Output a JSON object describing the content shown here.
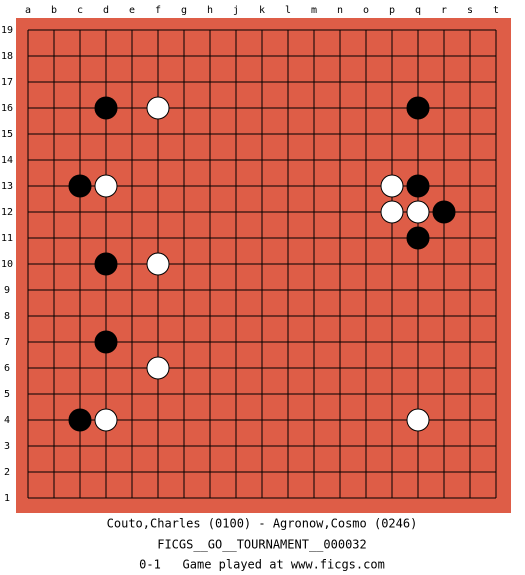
{
  "board": {
    "columns": [
      "a",
      "b",
      "c",
      "d",
      "e",
      "f",
      "g",
      "h",
      "j",
      "k",
      "l",
      "m",
      "n",
      "o",
      "p",
      "q",
      "r",
      "s",
      "t"
    ],
    "rows": [
      19,
      18,
      17,
      16,
      15,
      14,
      13,
      12,
      11,
      10,
      9,
      8,
      7,
      6,
      5,
      4,
      3,
      2,
      1
    ],
    "stones": [
      {
        "point": "d16",
        "color": "black"
      },
      {
        "point": "f16",
        "color": "white"
      },
      {
        "point": "q16",
        "color": "black"
      },
      {
        "point": "c13",
        "color": "black"
      },
      {
        "point": "d13",
        "color": "white"
      },
      {
        "point": "p13",
        "color": "white"
      },
      {
        "point": "q13",
        "color": "black"
      },
      {
        "point": "p12",
        "color": "white"
      },
      {
        "point": "q12",
        "color": "white"
      },
      {
        "point": "r12",
        "color": "black"
      },
      {
        "point": "q11",
        "color": "black"
      },
      {
        "point": "d10",
        "color": "black"
      },
      {
        "point": "f10",
        "color": "white"
      },
      {
        "point": "d7",
        "color": "black"
      },
      {
        "point": "f6",
        "color": "white"
      },
      {
        "point": "c4",
        "color": "black"
      },
      {
        "point": "d4",
        "color": "white"
      },
      {
        "point": "q4",
        "color": "white"
      }
    ]
  },
  "footer": {
    "players": "Couto,Charles (0100) - Agronow,Cosmo (0246)",
    "event": "FICGS__GO__TOURNAMENT__000032",
    "result": "0-1   Game played at www.ficgs.com"
  }
}
